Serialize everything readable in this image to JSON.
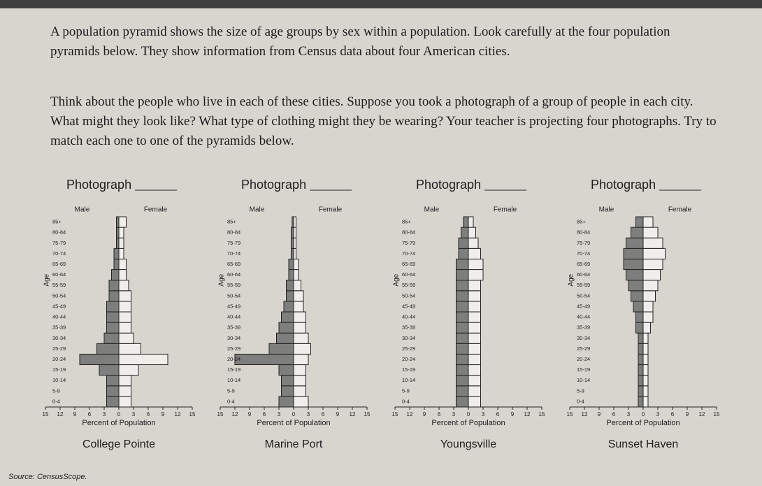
{
  "paragraphs": [
    "A population pyramid shows the size of age groups by sex within a population. Look carefully at the four population pyramids below. They show information from Census data about four American cities.",
    "Think about the people who live in each of these cities. Suppose you took a photograph of a group of people in each city. What might they look like? What type of clothing might they be wearing? Your teacher is projecting four photographs. Try to match each one to one of the pyramids below."
  ],
  "source": "Source: CensusScope.",
  "chart_data": [
    {
      "type": "pyramid",
      "photo_label": "Photograph",
      "title": "College Pointe",
      "xlabel": "Percent of Population",
      "ylabel": "Age",
      "categories": [
        "0-4",
        "5-9",
        "10-14",
        "15-19",
        "20-24",
        "25-29",
        "30-34",
        "35-39",
        "40-44",
        "45-49",
        "50-54",
        "55-59",
        "60-64",
        "65-69",
        "70-74",
        "75-79",
        "80-84",
        "85+"
      ],
      "series": [
        {
          "name": "Male",
          "color": "#7e7e7c",
          "values": [
            2.5,
            2.5,
            2.5,
            4,
            8,
            4.5,
            3,
            2.5,
            2.5,
            2.5,
            2,
            2,
            1.5,
            1,
            1,
            0.5,
            0.5,
            0.5
          ]
        },
        {
          "name": "Female",
          "color": "#efeeea",
          "values": [
            2.5,
            2.5,
            2.5,
            4,
            10,
            4.5,
            3,
            2.5,
            2.5,
            2.5,
            2.5,
            2,
            1.5,
            1.5,
            1,
            1,
            1,
            1.5
          ]
        }
      ],
      "xlim": [
        -15,
        15
      ],
      "xticks": [
        {
          "value": -15,
          "label": "15"
        },
        {
          "value": -12,
          "label": "12"
        },
        {
          "value": -9,
          "label": "9"
        },
        {
          "value": -6,
          "label": "6"
        },
        {
          "value": -3,
          "label": "3"
        },
        0,
        3,
        6,
        9,
        12,
        15
      ]
    },
    {
      "type": "pyramid",
      "photo_label": "Photograph",
      "title": "Marine Port",
      "xlabel": "Percent of Population",
      "ylabel": "Age",
      "categories": [
        "0-4",
        "5-9",
        "10-14",
        "15-19",
        "20-24",
        "25-29",
        "30-34",
        "35-39",
        "40-44",
        "45-49",
        "50-54",
        "55-59",
        "60-64",
        "65-69",
        "70-74",
        "75-79",
        "80-84",
        "85+"
      ],
      "series": [
        {
          "name": "Male",
          "color": "#7e7e7c",
          "values": [
            3,
            2.5,
            2.5,
            3,
            12,
            5,
            3.5,
            3,
            2.5,
            2,
            1.5,
            1.5,
            1,
            1,
            0.5,
            0.5,
            0.5,
            0.3
          ]
        },
        {
          "name": "Female",
          "color": "#efeeea",
          "values": [
            3,
            2.5,
            2.5,
            2.5,
            3,
            3.5,
            3,
            2.5,
            2.5,
            2,
            2,
            1.5,
            1,
            1,
            0.5,
            0.5,
            0.5,
            0.5
          ]
        }
      ],
      "xlim": [
        -15,
        15
      ],
      "xticks": [
        {
          "value": -15,
          "label": "15"
        },
        {
          "value": -12,
          "label": "12"
        },
        {
          "value": -9,
          "label": "9"
        },
        {
          "value": -6,
          "label": "6"
        },
        {
          "value": -3,
          "label": "3"
        },
        0,
        3,
        6,
        9,
        12,
        15
      ]
    },
    {
      "type": "pyramid",
      "photo_label": "Photograph",
      "title": "Youngsville",
      "xlabel": "Percent of Population",
      "ylabel": "Age",
      "categories": [
        "0-4",
        "5-9",
        "10-14",
        "15-19",
        "20-24",
        "25-29",
        "30-34",
        "35-39",
        "40-44",
        "45-49",
        "50-54",
        "55-59",
        "60-64",
        "65-69",
        "70-74",
        "75-79",
        "80-84",
        "85+"
      ],
      "series": [
        {
          "name": "Male",
          "color": "#7e7e7c",
          "values": [
            2.5,
            2.5,
            2.5,
            2.5,
            2.5,
            2.5,
            2.5,
            2.5,
            2.5,
            2.5,
            2.5,
            2.5,
            2.5,
            2.5,
            2,
            2,
            1.5,
            1
          ]
        },
        {
          "name": "Female",
          "color": "#efeeea",
          "values": [
            2.5,
            2.5,
            2.5,
            2.5,
            2.5,
            2.5,
            2.5,
            2.5,
            2.5,
            2.5,
            2.5,
            2.5,
            3,
            3,
            2.5,
            2,
            1.5,
            1
          ]
        }
      ],
      "xlim": [
        -15,
        15
      ],
      "xticks": [
        {
          "value": -15,
          "label": "15"
        },
        {
          "value": -12,
          "label": "12"
        },
        {
          "value": -9,
          "label": "9"
        },
        {
          "value": -6,
          "label": "6"
        },
        {
          "value": -3,
          "label": "3"
        },
        0,
        3,
        6,
        9,
        12,
        15
      ]
    },
    {
      "type": "pyramid",
      "photo_label": "Photograph",
      "title": "Sunset Haven",
      "xlabel": "Percent of Population",
      "ylabel": "Age",
      "categories": [
        "0-4",
        "5-9",
        "10-14",
        "15-19",
        "20-24",
        "25-29",
        "30-34",
        "35-39",
        "40-44",
        "45-49",
        "50-54",
        "55-59",
        "60-64",
        "65-69",
        "70-74",
        "75-79",
        "80-84",
        "85+"
      ],
      "series": [
        {
          "name": "Male",
          "color": "#7e7e7c",
          "values": [
            1,
            1,
            1,
            1,
            1,
            1,
            1,
            1.5,
            1.5,
            2,
            2.5,
            3,
            3.5,
            4,
            4,
            3.5,
            2.5,
            1.5
          ]
        },
        {
          "name": "Female",
          "color": "#efeeea",
          "values": [
            1,
            1,
            1,
            1,
            1,
            1,
            1,
            1.5,
            2,
            2,
            2.5,
            3,
            3.5,
            4,
            4.5,
            4,
            3,
            2
          ]
        }
      ],
      "xlim": [
        -15,
        15
      ],
      "xticks": [
        {
          "value": -15,
          "label": "15"
        },
        {
          "value": -12,
          "label": "12"
        },
        {
          "value": -9,
          "label": "9"
        },
        {
          "value": -6,
          "label": "6"
        },
        {
          "value": -3,
          "label": "3"
        },
        0,
        3,
        6,
        9,
        12,
        15
      ]
    }
  ]
}
